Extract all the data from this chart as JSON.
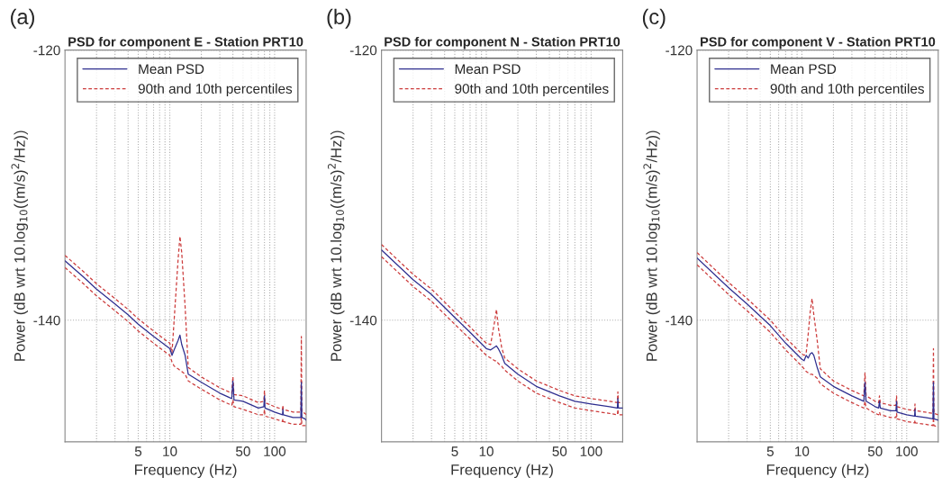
{
  "chart_data": [
    {
      "type": "line",
      "title": "PSD for component E - Station PRT10",
      "xlabel": "Frequency (Hz)",
      "ylabel": "Power (dB wrt 10.log$_{10}$((m/s)$^{2}$/Hz))",
      "annotations": [
        "(a)"
      ],
      "log": "x",
      "grid": true,
      "legend": "top right",
      "xlim": [
        1,
        200
      ],
      "ylim": [
        -149,
        -120
      ],
      "yticks": [
        -140,
        -120
      ],
      "xticks": [
        {
          "value": 2,
          "label": null
        },
        {
          "value": 3,
          "label": null
        },
        {
          "value": 4,
          "label": null
        },
        5,
        {
          "value": 6,
          "label": null
        },
        {
          "value": 7,
          "label": null
        },
        {
          "value": 8,
          "label": null
        },
        {
          "value": 9,
          "label": null
        },
        10,
        {
          "value": 20,
          "label": null
        },
        {
          "value": 30,
          "label": null
        },
        {
          "value": 40,
          "label": null
        },
        50,
        {
          "value": 60,
          "label": null
        },
        {
          "value": 70,
          "label": null
        },
        {
          "value": 80,
          "label": null
        },
        {
          "value": 90,
          "label": null
        },
        100
      ],
      "x": [
        1,
        1.5,
        2,
        3,
        4,
        5,
        7,
        10,
        10.5,
        11,
        12,
        12.5,
        13,
        14,
        15,
        20,
        30,
        39,
        40,
        41,
        50,
        70,
        79,
        80,
        81,
        100,
        119,
        120,
        121,
        150,
        178,
        180,
        182,
        195,
        200
      ],
      "series": [
        {
          "name": "Mean PSD",
          "color": "#2e2e8f",
          "line_style": "solid",
          "values": [
            -135.6,
            -136.8,
            -137.7,
            -138.8,
            -139.6,
            -140.3,
            -141.2,
            -142.1,
            -142.6,
            -142.2,
            -141.5,
            -141.1,
            -141.8,
            -142.6,
            -144.0,
            -144.6,
            -145.4,
            -145.8,
            -144.5,
            -145.9,
            -146.0,
            -146.5,
            -146.4,
            -145.6,
            -146.5,
            -146.8,
            -147.0,
            -146.6,
            -147.0,
            -147.2,
            -147.2,
            -144.6,
            -147.2,
            -147.3,
            -147.4
          ]
        },
        {
          "name": "90th and 10th percentiles",
          "color": "#cc3b3b",
          "line_style": "dashed",
          "values": [
            -135.2,
            -136.4,
            -137.3,
            -138.4,
            -139.2,
            -139.9,
            -140.8,
            -141.7,
            -142.4,
            -140.0,
            -135.5,
            -133.8,
            -135.0,
            -139.0,
            -143.5,
            -144.2,
            -145.0,
            -145.4,
            -144.2,
            -145.5,
            -145.6,
            -146.1,
            -146.0,
            -145.2,
            -146.1,
            -146.4,
            -146.6,
            -146.3,
            -146.6,
            -146.8,
            -146.8,
            -141.2,
            -146.8,
            -146.9,
            -147.0
          ]
        },
        {
          "color": "#cc3b3b",
          "line_style": "dashed",
          "values": [
            -136.1,
            -137.3,
            -138.2,
            -139.3,
            -140.1,
            -140.8,
            -141.7,
            -142.6,
            -143.1,
            -143.4,
            -143.6,
            -143.7,
            -143.8,
            -144.0,
            -144.5,
            -145.1,
            -145.9,
            -146.3,
            -145.9,
            -146.4,
            -146.6,
            -147.0,
            -147.0,
            -146.6,
            -147.1,
            -147.3,
            -147.5,
            -147.3,
            -147.5,
            -147.7,
            -147.7,
            -147.0,
            -147.8,
            -147.8,
            -147.8
          ]
        }
      ]
    },
    {
      "type": "line",
      "title": "PSD for component N - Station PRT10",
      "xlabel": "Frequency (Hz)",
      "ylabel": "Power (dB wrt 10.log$_{10}$((m/s)$^{2}$/Hz))",
      "annotations": [
        "(b)"
      ],
      "log": "x",
      "grid": true,
      "legend": "top right",
      "xlim": [
        1,
        200
      ],
      "ylim": [
        -149,
        -120
      ],
      "yticks": [
        -140,
        -120
      ],
      "xticks": [
        {
          "value": 2,
          "label": null
        },
        {
          "value": 3,
          "label": null
        },
        {
          "value": 4,
          "label": null
        },
        5,
        {
          "value": 6,
          "label": null
        },
        {
          "value": 7,
          "label": null
        },
        {
          "value": 8,
          "label": null
        },
        {
          "value": 9,
          "label": null
        },
        10,
        {
          "value": 20,
          "label": null
        },
        {
          "value": 30,
          "label": null
        },
        {
          "value": 40,
          "label": null
        },
        50,
        {
          "value": 60,
          "label": null
        },
        {
          "value": 70,
          "label": null
        },
        {
          "value": 80,
          "label": null
        },
        {
          "value": 90,
          "label": null
        },
        100
      ],
      "x": [
        1,
        2,
        3,
        5,
        7,
        10,
        11,
        12,
        12.5,
        13,
        14,
        15,
        20,
        30,
        50,
        70,
        100,
        150,
        178,
        180,
        182,
        200
      ],
      "series": [
        {
          "name": "Mean PSD",
          "color": "#2e2e8f",
          "line_style": "solid",
          "values": [
            -134.8,
            -137.0,
            -138.1,
            -139.8,
            -140.9,
            -142.1,
            -142.2,
            -142.0,
            -141.9,
            -142.1,
            -142.6,
            -143.2,
            -144.0,
            -144.9,
            -145.6,
            -146.0,
            -146.2,
            -146.4,
            -146.5,
            -145.8,
            -146.5,
            -146.5
          ]
        },
        {
          "name": "90th and 10th percentiles",
          "color": "#cc3b3b",
          "line_style": "dashed",
          "values": [
            -134.4,
            -136.6,
            -137.7,
            -139.4,
            -140.5,
            -141.7,
            -141.8,
            -140.1,
            -139.2,
            -140.5,
            -142.0,
            -142.8,
            -143.6,
            -144.5,
            -145.2,
            -145.6,
            -145.8,
            -146.0,
            -146.1,
            -145.3,
            -146.1,
            -146.1
          ]
        },
        {
          "color": "#cc3b3b",
          "line_style": "dashed",
          "values": [
            -135.3,
            -137.5,
            -138.6,
            -140.3,
            -141.4,
            -142.6,
            -142.8,
            -143.0,
            -143.0,
            -143.2,
            -143.4,
            -143.7,
            -144.5,
            -145.4,
            -146.1,
            -146.5,
            -146.7,
            -146.9,
            -147.0,
            -146.6,
            -147.0,
            -147.0
          ]
        }
      ]
    },
    {
      "type": "line",
      "title": "PSD for component V - Station PRT10",
      "xlabel": "Frequency (Hz)",
      "ylabel": "Power (dB wrt 10.log$_{10}$((m/s)$^{2}$/Hz))",
      "annotations": [
        "(c)"
      ],
      "log": "x",
      "grid": true,
      "legend": "top right",
      "xlim": [
        1,
        200
      ],
      "ylim": [
        -149,
        -120
      ],
      "yticks": [
        -140,
        -120
      ],
      "xticks": [
        {
          "value": 2,
          "label": null
        },
        {
          "value": 3,
          "label": null
        },
        {
          "value": 4,
          "label": null
        },
        5,
        {
          "value": 6,
          "label": null
        },
        {
          "value": 7,
          "label": null
        },
        {
          "value": 8,
          "label": null
        },
        {
          "value": 9,
          "label": null
        },
        10,
        {
          "value": 20,
          "label": null
        },
        {
          "value": 30,
          "label": null
        },
        {
          "value": 40,
          "label": null
        },
        50,
        {
          "value": 60,
          "label": null
        },
        {
          "value": 70,
          "label": null
        },
        {
          "value": 80,
          "label": null
        },
        {
          "value": 90,
          "label": null
        },
        100
      ],
      "x": [
        1,
        2,
        3,
        5,
        7,
        10,
        10.5,
        11,
        11.5,
        12,
        12.5,
        13,
        14,
        15,
        20,
        30,
        39,
        40,
        41,
        50,
        54,
        55,
        56,
        70,
        79,
        80,
        81,
        100,
        119,
        120,
        121,
        150,
        178,
        180,
        182,
        200
      ],
      "series": [
        {
          "name": "Mean PSD",
          "color": "#2e2e8f",
          "line_style": "solid",
          "values": [
            -135.4,
            -137.6,
            -138.8,
            -140.4,
            -141.7,
            -142.9,
            -143.0,
            -142.6,
            -142.8,
            -142.5,
            -142.4,
            -142.6,
            -143.5,
            -144.2,
            -144.9,
            -145.6,
            -146.0,
            -144.6,
            -146.0,
            -146.4,
            -146.5,
            -146.0,
            -146.5,
            -146.7,
            -146.7,
            -146.0,
            -146.8,
            -147.0,
            -147.1,
            -146.6,
            -147.1,
            -147.2,
            -147.3,
            -144.6,
            -147.3,
            -147.4
          ]
        },
        {
          "name": "90th and 10th percentiles",
          "color": "#cc3b3b",
          "line_style": "dashed",
          "values": [
            -135.0,
            -137.2,
            -138.4,
            -140.0,
            -141.3,
            -142.5,
            -142.6,
            -142.4,
            -141.0,
            -139.4,
            -138.4,
            -139.6,
            -141.5,
            -143.6,
            -144.5,
            -145.2,
            -145.6,
            -143.9,
            -145.6,
            -146.0,
            -146.1,
            -145.6,
            -146.1,
            -146.3,
            -146.3,
            -145.6,
            -146.4,
            -146.6,
            -146.7,
            -146.2,
            -146.7,
            -146.8,
            -146.9,
            -142.1,
            -146.9,
            -147.0
          ]
        },
        {
          "color": "#cc3b3b",
          "line_style": "dashed",
          "values": [
            -135.9,
            -138.1,
            -139.3,
            -140.9,
            -142.2,
            -143.4,
            -143.6,
            -143.8,
            -143.9,
            -144.0,
            -144.0,
            -144.1,
            -144.3,
            -144.7,
            -145.4,
            -146.1,
            -146.5,
            -146.0,
            -146.5,
            -146.9,
            -147.0,
            -146.8,
            -147.0,
            -147.2,
            -147.2,
            -146.9,
            -147.3,
            -147.5,
            -147.6,
            -147.4,
            -147.6,
            -147.7,
            -147.8,
            -147.2,
            -147.8,
            -147.9
          ]
        }
      ]
    }
  ]
}
